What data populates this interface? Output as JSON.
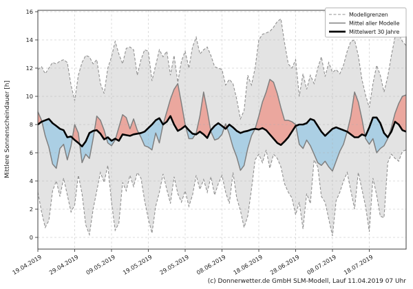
{
  "ylabel": "Mittlere Sonnenscheindauer [h]",
  "footer": {
    "text": "(c) Donnerwetter.de GmbH SLM-Modell, Lauf 11.04.2019 07 Uhr"
  },
  "legend": {
    "position": "upper right",
    "items": [
      {
        "label": "Modellgrenzen",
        "style": "dashed-gray"
      },
      {
        "label": "Mittel aller Modelle",
        "style": "solid-gray"
      },
      {
        "label": "Mittelwert 30 Jahre",
        "style": "thick-black"
      }
    ]
  },
  "colors": {
    "band_fill": "#e3e3e3",
    "band_edge": "#8f8f8f",
    "grid": "#b0b0b0",
    "model_mean_line": "#7f7f7f",
    "mean30_line": "#000000",
    "fill_above": "#eba79e",
    "fill_below": "#abcfe4",
    "plot_border": "#3c3c3c",
    "legend_border": "#b5b5b5",
    "text": "#1b1b1b"
  },
  "chart_data": {
    "type": "line",
    "title": "",
    "xlabel": "",
    "ylabel": "Mittlere Sonnenscheindauer [h]",
    "grid": true,
    "legend_position": "upper right",
    "ylim": [
      -0.85,
      16.1
    ],
    "y_ticks": [
      0,
      2,
      4,
      6,
      8,
      10,
      12,
      14,
      16
    ],
    "x_unit": "day (index = days after first tick date)",
    "xlim_days": [
      0,
      100
    ],
    "x_tick_days": [
      0,
      10,
      20,
      30,
      40,
      50,
      60,
      70,
      80,
      90
    ],
    "x_tick_labels": [
      "19.04.2019",
      "29.04.2019",
      "09.05.2019",
      "19.05.2019",
      "29.05.2019",
      "08.06.2019",
      "18.06.2019",
      "28.06.2019",
      "08.07.2019",
      "18.07.2019"
    ],
    "fills": {
      "band": "gray band between model_min and model_max (Modellgrenzen)",
      "above": "red where model_mean > mean30",
      "below": "blue where model_mean < mean30"
    },
    "series": [
      {
        "id": "model_max",
        "name": "Modellgrenzen (oben)",
        "values": [
          11.9,
          12.1,
          11.6,
          12.0,
          12.4,
          12.3,
          12.5,
          12.6,
          12.4,
          10.8,
          9.7,
          11.5,
          12.4,
          12.9,
          12.8,
          12.3,
          12.6,
          10.9,
          10.2,
          12.0,
          12.8,
          13.9,
          13.0,
          12.3,
          13.4,
          13.5,
          13.3,
          11.5,
          12.6,
          13.3,
          13.2,
          11.1,
          12.2,
          13.3,
          12.8,
          13.2,
          11.5,
          12.9,
          11.0,
          12.5,
          13.2,
          12.0,
          13.5,
          14.2,
          13.0,
          13.3,
          13.5,
          12.9,
          12.1,
          12.0,
          11.9,
          10.8,
          11.2,
          10.9,
          9.8,
          8.4,
          9.0,
          11.5,
          10.8,
          12.0,
          14.0,
          14.4,
          14.5,
          14.6,
          14.9,
          15.3,
          15.5,
          13.8,
          12.3,
          12.0,
          12.6,
          10.0,
          11.6,
          10.5,
          11.5,
          10.9,
          12.0,
          12.8,
          11.4,
          12.4,
          11.7,
          11.9,
          11.6,
          12.2,
          13.2,
          13.9,
          14.0,
          12.9,
          11.2,
          10.1,
          9.2,
          10.9,
          12.2,
          11.5,
          10.3,
          11.4,
          12.9,
          14.2,
          14.4,
          13.9,
          13.6
        ]
      },
      {
        "id": "model_min",
        "name": "Modellgrenzen (unten)",
        "values": [
          3.2,
          1.8,
          0.7,
          1.2,
          3.3,
          4.0,
          2.9,
          4.2,
          3.0,
          1.8,
          2.3,
          4.4,
          3.1,
          0.9,
          0.2,
          2.0,
          3.3,
          4.6,
          3.9,
          5.1,
          2.5,
          0.5,
          1.0,
          3.9,
          3.3,
          4.4,
          3.6,
          4.6,
          4.2,
          2.6,
          1.3,
          0.3,
          2.2,
          3.2,
          4.5,
          3.4,
          2.4,
          4.3,
          3.1,
          2.5,
          3.3,
          2.2,
          3.0,
          4.4,
          3.4,
          4.1,
          3.2,
          4.3,
          3.0,
          3.8,
          4.4,
          3.2,
          2.4,
          4.6,
          2.8,
          1.9,
          0.7,
          1.5,
          3.4,
          5.5,
          5.9,
          5.3,
          6.2,
          4.9,
          5.9,
          5.6,
          5.0,
          3.8,
          3.2,
          2.8,
          1.6,
          2.5,
          0.6,
          3.1,
          2.4,
          5.5,
          5.0,
          2.9,
          2.5,
          1.3,
          0.1,
          2.6,
          3.2,
          4.0,
          4.6,
          3.3,
          2.0,
          4.6,
          3.4,
          2.2,
          0.4,
          4.2,
          3.0,
          1.5,
          1.4,
          5.3,
          5.9,
          5.6,
          5.4,
          6.1,
          6.2
        ]
      },
      {
        "id": "model_mean",
        "name": "Mittel aller Modelle",
        "values": [
          8.9,
          8.3,
          7.2,
          6.4,
          5.2,
          4.9,
          6.3,
          6.6,
          5.5,
          6.5,
          8.0,
          7.4,
          5.3,
          5.9,
          5.6,
          7.0,
          8.6,
          8.3,
          7.6,
          6.7,
          6.5,
          6.9,
          7.8,
          8.7,
          8.5,
          7.7,
          8.4,
          7.6,
          7.1,
          6.5,
          6.4,
          6.2,
          7.4,
          6.7,
          8.0,
          8.9,
          9.8,
          10.5,
          10.9,
          9.5,
          8.0,
          7.0,
          7.0,
          7.4,
          8.6,
          10.3,
          9.0,
          7.5,
          6.9,
          7.0,
          7.3,
          8.05,
          7.3,
          6.4,
          5.7,
          4.75,
          5.1,
          6.3,
          7.2,
          7.7,
          8.6,
          9.6,
          10.3,
          11.2,
          11.0,
          10.2,
          9.2,
          8.3,
          8.3,
          8.2,
          8.0,
          6.6,
          6.3,
          6.9,
          6.5,
          5.9,
          5.3,
          5.1,
          5.4,
          5.0,
          4.7,
          5.4,
          6.1,
          6.6,
          7.5,
          8.6,
          10.3,
          9.6,
          8.4,
          7.0,
          6.6,
          7.0,
          6.0,
          6.3,
          6.5,
          7.0,
          7.8,
          8.8,
          9.5,
          10.0,
          10.1
        ]
      },
      {
        "id": "mean30",
        "name": "Mittelwert 30 Jahre",
        "values": [
          8.0,
          8.2,
          8.3,
          8.4,
          8.1,
          7.9,
          7.7,
          7.6,
          7.1,
          7.15,
          6.9,
          6.7,
          6.45,
          6.8,
          7.4,
          7.55,
          7.6,
          7.35,
          6.95,
          7.1,
          6.85,
          7.0,
          6.85,
          7.3,
          7.25,
          7.2,
          7.3,
          7.35,
          7.4,
          7.5,
          7.75,
          8.0,
          8.3,
          8.45,
          8.0,
          8.2,
          8.6,
          8.0,
          7.55,
          7.7,
          7.9,
          7.6,
          7.35,
          7.3,
          7.5,
          7.3,
          7.05,
          7.6,
          7.9,
          8.1,
          7.9,
          7.7,
          8.0,
          7.8,
          7.55,
          7.4,
          7.5,
          7.55,
          7.65,
          7.7,
          7.65,
          7.75,
          7.6,
          7.3,
          7.0,
          6.7,
          6.55,
          6.8,
          7.1,
          7.5,
          7.9,
          8.0,
          8.0,
          8.1,
          8.4,
          8.3,
          7.9,
          7.5,
          7.2,
          7.45,
          7.7,
          7.8,
          7.7,
          7.6,
          7.5,
          7.3,
          7.1,
          7.1,
          7.3,
          7.2,
          7.8,
          8.5,
          8.5,
          8.1,
          7.4,
          7.1,
          7.5,
          8.2,
          8.0,
          7.6,
          7.5
        ]
      }
    ]
  }
}
